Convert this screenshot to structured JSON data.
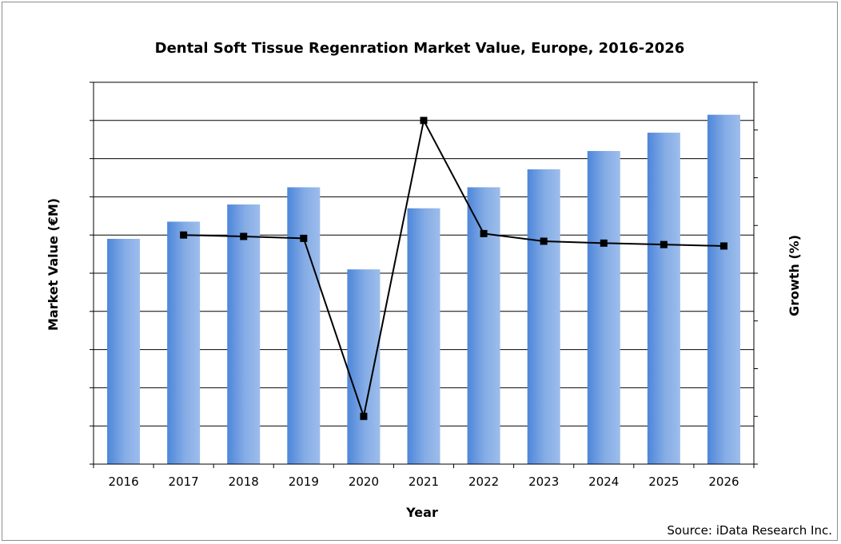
{
  "chart_data": {
    "type": "bar",
    "title": "Dental Soft Tissue Regenration Market Value, Europe, 2016-2026",
    "xlabel": "Year",
    "ylabel": "Market Value (€M)",
    "y2label": "Growth (%)",
    "source": "Source: iData Research Inc.",
    "categories": [
      "2016",
      "2017",
      "2018",
      "2019",
      "2020",
      "2021",
      "2022",
      "2023",
      "2024",
      "2025",
      "2026"
    ],
    "series": [
      {
        "type": "bar",
        "axis": "left",
        "color": "#6f9ee0",
        "values": [
          5.9,
          6.35,
          6.8,
          7.25,
          5.1,
          6.7,
          7.25,
          7.72,
          8.2,
          8.68,
          9.15
        ]
      },
      {
        "type": "line",
        "axis": "right",
        "color": "#000000",
        "marker": "square",
        "values": [
          null,
          4.8,
          4.77,
          4.73,
          1.0,
          7.2,
          4.83,
          4.67,
          4.63,
          4.6,
          4.57
        ]
      }
    ],
    "ylim": [
      0,
      10
    ],
    "y2lim": [
      0,
      8
    ],
    "grid": true,
    "tick_labels_shown": false
  }
}
